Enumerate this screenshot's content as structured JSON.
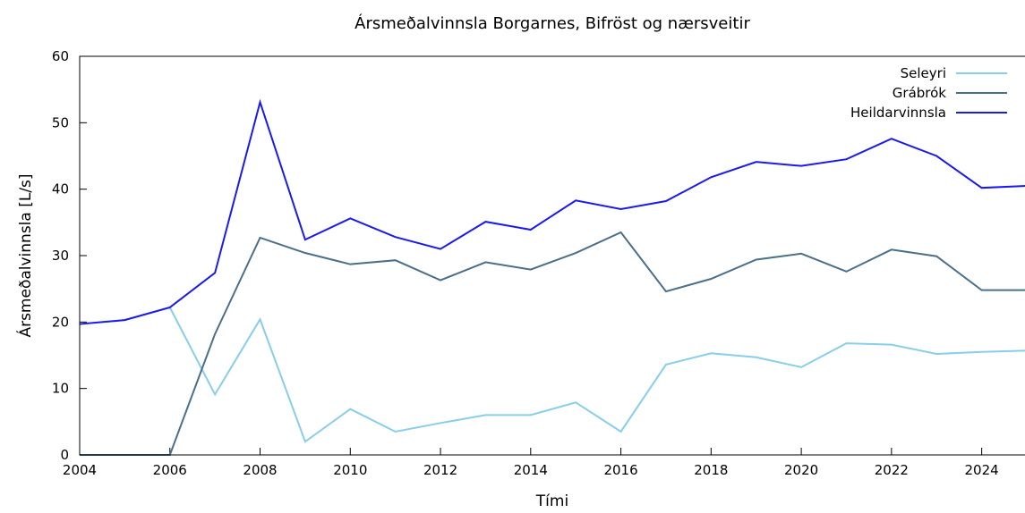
{
  "chart_data": {
    "type": "line",
    "title": "Ársmeðalvinnsla Borgarnes, Bifröst og nærsveitir",
    "x_label": "Tími",
    "y_label": "Ársmeðalvinnsla [L/s]",
    "x": [
      2004,
      2005,
      2006,
      2007,
      2008,
      2009,
      2010,
      2011,
      2012,
      2013,
      2014,
      2015,
      2016,
      2017,
      2018,
      2019,
      2020,
      2021,
      2022,
      2023,
      2024,
      2025
    ],
    "series": [
      {
        "name": "Seleyri",
        "color": "#87ceeb",
        "values": [
          19.7,
          20.3,
          22.2,
          9.1,
          20.4,
          2.0,
          6.9,
          3.5,
          4.8,
          6.0,
          6.0,
          7.9,
          3.5,
          13.6,
          15.3,
          14.7,
          13.2,
          16.8,
          16.6,
          15.2,
          15.5,
          15.7
        ]
      },
      {
        "name": "Grábrók",
        "color": "#4a6f8a",
        "values": [
          0,
          0,
          0,
          18.2,
          32.7,
          30.4,
          28.7,
          29.3,
          26.3,
          29.0,
          27.9,
          30.4,
          33.5,
          24.6,
          26.5,
          29.4,
          30.3,
          27.6,
          30.9,
          29.9,
          24.8,
          24.8
        ]
      },
      {
        "name": "Heildarvinnsla",
        "color": "#1a1aee",
        "values": [
          19.7,
          20.3,
          22.2,
          27.4,
          53.1,
          32.4,
          35.6,
          32.8,
          31.0,
          35.1,
          33.9,
          38.3,
          37.0,
          38.2,
          41.8,
          44.1,
          43.5,
          44.5,
          47.6,
          45.0,
          40.2,
          40.5
        ]
      }
    ],
    "xlim": [
      2004,
      2025
    ],
    "xticks": [
      2004,
      2006,
      2008,
      2010,
      2012,
      2014,
      2016,
      2018,
      2020,
      2022,
      2024
    ],
    "ylim": [
      0,
      60
    ],
    "yticks": [
      0,
      10,
      20,
      30,
      40,
      50,
      60
    ],
    "legend": "upper right"
  }
}
